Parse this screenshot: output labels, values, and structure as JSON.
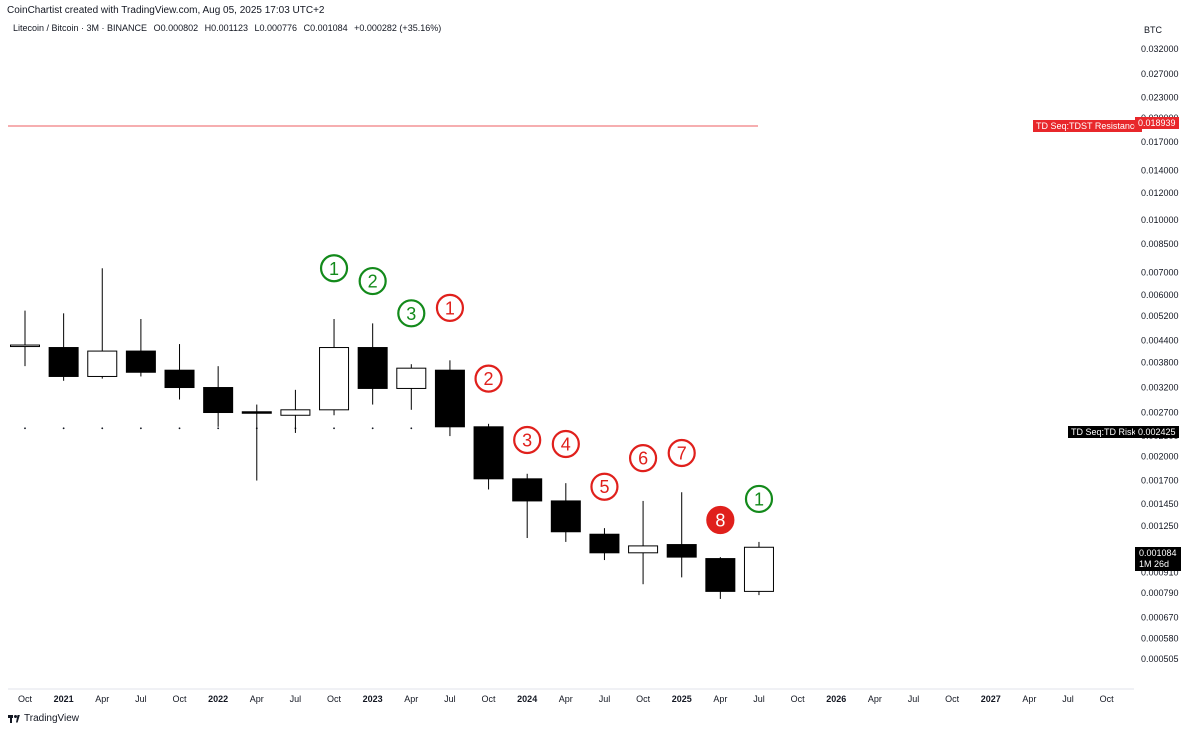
{
  "header": {
    "credit": "CoinChartist created with TradingView.com, Aug 05, 2025 17:03 UTC+2",
    "symbol": "Litecoin / Bitcoin · 3M · BINANCE",
    "open": "O0.000802",
    "high": "H0.001123",
    "low": "L0.000776",
    "close": "C0.001084",
    "change": "+0.000282 (+35.16%)"
  },
  "footer": {
    "brand": "TradingView"
  },
  "chart_data": {
    "type": "candlestick",
    "y_unit": "BTC",
    "y_scale": "log",
    "ylim": [
      0.00045,
      0.034
    ],
    "y_ticks": [
      "0.032000",
      "0.027000",
      "0.023000",
      "0.020000",
      "0.017000",
      "0.014000",
      "0.012000",
      "0.010000",
      "0.008500",
      "0.007000",
      "0.006000",
      "0.005200",
      "0.004400",
      "0.003800",
      "0.003200",
      "0.002700",
      "0.002300",
      "0.002000",
      "0.001700",
      "0.001450",
      "0.001250",
      "0.000910",
      "0.000790",
      "0.000670",
      "0.000580",
      "0.000505"
    ],
    "x_ticks": [
      {
        "label": "Oct",
        "bold": false
      },
      {
        "label": "2021",
        "bold": true
      },
      {
        "label": "Apr",
        "bold": false
      },
      {
        "label": "Jul",
        "bold": false
      },
      {
        "label": "Oct",
        "bold": false
      },
      {
        "label": "2022",
        "bold": true
      },
      {
        "label": "Apr",
        "bold": false
      },
      {
        "label": "Jul",
        "bold": false
      },
      {
        "label": "Oct",
        "bold": false
      },
      {
        "label": "2023",
        "bold": true
      },
      {
        "label": "Apr",
        "bold": false
      },
      {
        "label": "Jul",
        "bold": false
      },
      {
        "label": "Oct",
        "bold": false
      },
      {
        "label": "2024",
        "bold": true
      },
      {
        "label": "Apr",
        "bold": false
      },
      {
        "label": "Jul",
        "bold": false
      },
      {
        "label": "Oct",
        "bold": false
      },
      {
        "label": "2025",
        "bold": true
      },
      {
        "label": "Apr",
        "bold": false
      },
      {
        "label": "Jul",
        "bold": false
      },
      {
        "label": "Oct",
        "bold": false
      },
      {
        "label": "2026",
        "bold": true
      },
      {
        "label": "Apr",
        "bold": false
      },
      {
        "label": "Jul",
        "bold": false
      },
      {
        "label": "Oct",
        "bold": false
      },
      {
        "label": "2027",
        "bold": true
      },
      {
        "label": "Apr",
        "bold": false
      },
      {
        "label": "Jul",
        "bold": false
      },
      {
        "label": "Oct",
        "bold": false
      }
    ],
    "candles": [
      {
        "period": "2020-Q3",
        "open": 0.00425,
        "high": 0.0054,
        "low": 0.0037,
        "close": 0.00425
      },
      {
        "period": "2020-Q4",
        "open": 0.0042,
        "high": 0.0053,
        "low": 0.00335,
        "close": 0.00345
      },
      {
        "period": "2021-Q1",
        "open": 0.00345,
        "high": 0.0072,
        "low": 0.0034,
        "close": 0.0041
      },
      {
        "period": "2021-Q2",
        "open": 0.0041,
        "high": 0.0051,
        "low": 0.00345,
        "close": 0.00355
      },
      {
        "period": "2021-Q3",
        "open": 0.0036,
        "high": 0.0043,
        "low": 0.00295,
        "close": 0.0032
      },
      {
        "period": "2021-Q4",
        "open": 0.0032,
        "high": 0.0037,
        "low": 0.00245,
        "close": 0.0027
      },
      {
        "period": "2022-Q1",
        "open": 0.0027,
        "high": 0.00285,
        "low": 0.0017,
        "close": 0.00268
      },
      {
        "period": "2022-Q2",
        "open": 0.00265,
        "high": 0.00315,
        "low": 0.00235,
        "close": 0.00275
      },
      {
        "period": "2022-Q3",
        "open": 0.00275,
        "high": 0.0051,
        "low": 0.00265,
        "close": 0.0042
      },
      {
        "period": "2022-Q4",
        "open": 0.0042,
        "high": 0.00495,
        "low": 0.00285,
        "close": 0.00318
      },
      {
        "period": "2023-Q1",
        "open": 0.00318,
        "high": 0.00375,
        "low": 0.00275,
        "close": 0.00365
      },
      {
        "period": "2023-Q2",
        "open": 0.0036,
        "high": 0.00385,
        "low": 0.0023,
        "close": 0.00245
      },
      {
        "period": "2023-Q3",
        "open": 0.00245,
        "high": 0.0025,
        "low": 0.0016,
        "close": 0.00172
      },
      {
        "period": "2023-Q4",
        "open": 0.00172,
        "high": 0.00178,
        "low": 0.00115,
        "close": 0.00148
      },
      {
        "period": "2024-Q1",
        "open": 0.00148,
        "high": 0.00167,
        "low": 0.00112,
        "close": 0.0012
      },
      {
        "period": "2024-Q2",
        "open": 0.00118,
        "high": 0.00123,
        "low": 0.00099,
        "close": 0.00104
      },
      {
        "period": "2024-Q3",
        "open": 0.00104,
        "high": 0.00148,
        "low": 0.00084,
        "close": 0.00109
      },
      {
        "period": "2024-Q4",
        "open": 0.0011,
        "high": 0.00157,
        "low": 0.00088,
        "close": 0.00101
      },
      {
        "period": "2025-Q1",
        "open": 0.001,
        "high": 0.00101,
        "low": 0.00076,
        "close": 0.0008
      },
      {
        "period": "2025-Q2",
        "open": 0.0008,
        "high": 0.00112,
        "low": 0.00078,
        "close": 0.00108
      }
    ],
    "td_counts": [
      {
        "label": "1",
        "color": "green",
        "candle": 8,
        "y": 0.0072,
        "filled": false
      },
      {
        "label": "2",
        "color": "green",
        "candle": 9,
        "y": 0.0066,
        "filled": false
      },
      {
        "label": "3",
        "color": "green",
        "candle": 10,
        "y": 0.0053,
        "filled": false
      },
      {
        "label": "1",
        "color": "red",
        "candle": 11,
        "y": 0.0055,
        "filled": false
      },
      {
        "label": "2",
        "color": "red",
        "candle": 12,
        "y": 0.0034,
        "filled": false
      },
      {
        "label": "3",
        "color": "red",
        "candle": 13,
        "y": 0.00224,
        "filled": false
      },
      {
        "label": "4",
        "color": "red",
        "candle": 14,
        "y": 0.00218,
        "filled": false
      },
      {
        "label": "5",
        "color": "red",
        "candle": 15,
        "y": 0.00163,
        "filled": false
      },
      {
        "label": "6",
        "color": "red",
        "candle": 16,
        "y": 0.00198,
        "filled": false
      },
      {
        "label": "7",
        "color": "red",
        "candle": 17,
        "y": 0.00205,
        "filled": false
      },
      {
        "label": "8",
        "color": "red",
        "candle": 18,
        "y": 0.0013,
        "filled": true
      },
      {
        "label": "1",
        "color": "green",
        "candle": 19,
        "y": 0.0015,
        "filled": false
      }
    ],
    "resistance": {
      "label": "TD Seq:TDST Resistance",
      "value": "0.018939",
      "level": 0.018939
    },
    "risk": {
      "label": "TD Seq:TD Risk",
      "value": "0.002425",
      "level": 0.002425
    },
    "last_price": {
      "value": "0.001084",
      "countdown": "1M 26d",
      "level": 0.001084
    },
    "colors": {
      "green": "#138a1b",
      "red": "#e0201c",
      "resistance": "#e8272b",
      "candle": "#000000"
    }
  }
}
